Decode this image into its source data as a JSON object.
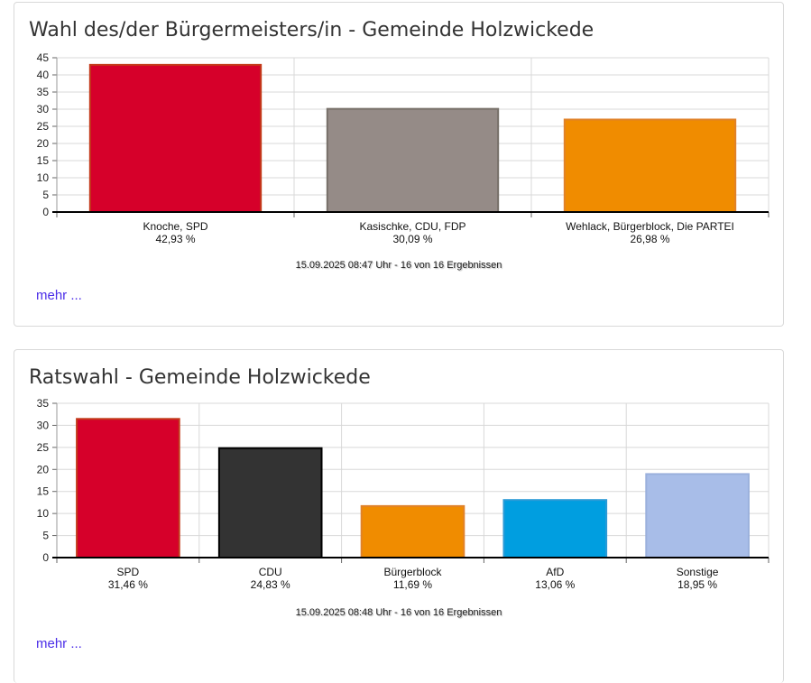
{
  "panels": [
    {
      "title": "Wahl des/der Bürgermeisters/in - Gemeinde Holzwickede",
      "timestamp": "15.09.2025 08:47 Uhr - 16 von 16 Ergebnissen",
      "more_label": "mehr ..."
    },
    {
      "title": "Ratswahl - Gemeinde Holzwickede",
      "timestamp": "15.09.2025 08:48 Uhr - 16 von 16 Ergebnissen",
      "more_label": "mehr ..."
    }
  ],
  "chart_data": [
    {
      "type": "bar",
      "title": "Wahl des/der Bürgermeisters/in - Gemeinde Holzwickede",
      "categories": [
        "Knoche, SPD",
        "Kasischke, CDU, FDP",
        "Wehlack, Bürgerblock, Die PARTEI"
      ],
      "values": [
        42.93,
        30.09,
        26.98
      ],
      "value_labels": [
        "42,93 %",
        "30,09 %",
        "26,98 %"
      ],
      "colors": [
        "#d6002a",
        "#958b87",
        "#f08c00"
      ],
      "border_colors": [
        "#c33a1a",
        "#777069",
        "#e0822a"
      ],
      "ylim": [
        0,
        45
      ],
      "yticks": [
        0,
        5,
        10,
        15,
        20,
        25,
        30,
        35,
        40,
        45
      ],
      "grid": true,
      "legend": "none"
    },
    {
      "type": "bar",
      "title": "Ratswahl - Gemeinde Holzwickede",
      "categories": [
        "SPD",
        "CDU",
        "Bürgerblock",
        "AfD",
        "Sonstige"
      ],
      "values": [
        31.46,
        24.83,
        11.69,
        13.06,
        18.95
      ],
      "value_labels": [
        "31,46 %",
        "24,83 %",
        "11,69 %",
        "13,06 %",
        "18,95 %"
      ],
      "colors": [
        "#d6002a",
        "#333333",
        "#f08c00",
        "#009ee0",
        "#a8bde8"
      ],
      "border_colors": [
        "#c33a1a",
        "#000000",
        "#e0822a",
        "#2b9ad6",
        "#9ab0dc"
      ],
      "ylim": [
        0,
        35
      ],
      "yticks": [
        0,
        5,
        10,
        15,
        20,
        25,
        30,
        35
      ],
      "grid": true,
      "legend": "none"
    }
  ]
}
